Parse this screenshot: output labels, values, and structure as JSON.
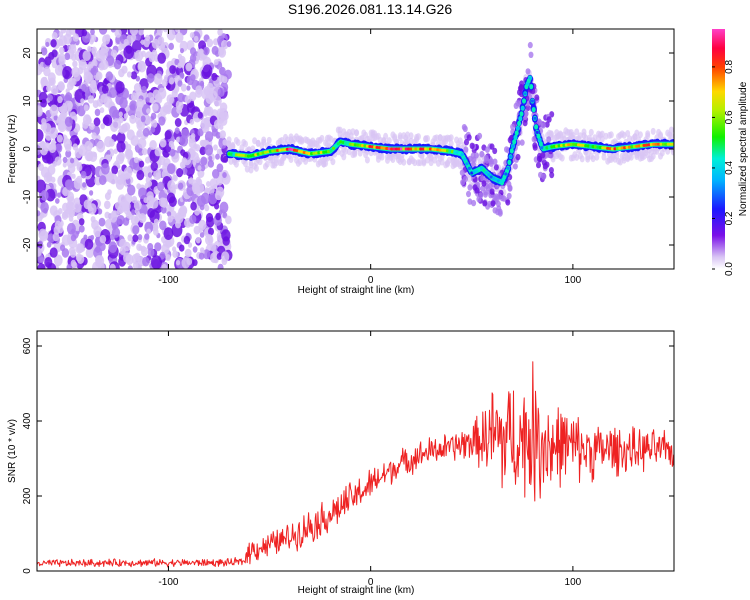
{
  "title": "S196.2026.081.13.14.G26",
  "colors": {
    "snr_line": "#ee2222",
    "frame": "#000000",
    "background": "#ffffff",
    "noise_light": "#d8c4f4",
    "noise_mid": "#a878ee",
    "noise_dark": "#6a10e0"
  },
  "colorbar": {
    "label": "Normalized spectral amplitude",
    "ticks": [
      "0.0",
      "0.2",
      "0.4",
      "0.6",
      "0.8"
    ],
    "tick_values": [
      0.0,
      0.2,
      0.4,
      0.6,
      0.8
    ],
    "range": [
      0,
      0.95
    ],
    "colormap": "rainbow: purple-blue-cyan-green-yellow-red-magenta"
  },
  "chart_data": [
    {
      "type": "heatmap",
      "name": "spectrogram",
      "title": "S196.2026.081.13.14.G26",
      "xlabel": "Height of straight line (km)",
      "ylabel": "Frequency (Hz)",
      "xlim": [
        -165,
        150
      ],
      "ylim": [
        -25,
        25
      ],
      "x_ticks": [
        -100,
        0,
        100
      ],
      "x_tick_labels": [
        "-100",
        "0",
        "100"
      ],
      "y_ticks": [
        -20,
        -10,
        0,
        10,
        20
      ],
      "y_tick_labels": [
        "-20",
        "-10",
        "0",
        "10",
        "20"
      ],
      "noise_region_x": [
        -165,
        -70
      ],
      "ridge": {
        "x": [
          -70,
          -60,
          -50,
          -40,
          -30,
          -20,
          -15,
          -10,
          0,
          10,
          20,
          30,
          40,
          45,
          50,
          55,
          60,
          65,
          68,
          70,
          72,
          75,
          77,
          79,
          80,
          82,
          85,
          90,
          100,
          110,
          120,
          130,
          140,
          150
        ],
        "y": [
          -1,
          -1.5,
          -0.5,
          0,
          -1,
          -0.5,
          1.5,
          1,
          0.5,
          0,
          0,
          0,
          -0.5,
          -1,
          -5,
          -4,
          -6,
          -7,
          -4,
          0,
          3,
          8,
          13,
          15,
          10,
          4,
          0,
          0.5,
          1,
          0.5,
          0,
          0.5,
          1,
          1
        ],
        "amplitude": [
          0.5,
          0.7,
          0.6,
          0.9,
          0.7,
          0.6,
          0.5,
          0.6,
          0.8,
          0.9,
          0.85,
          0.8,
          0.6,
          0.4,
          0.3,
          0.45,
          0.35,
          0.4,
          0.3,
          0.35,
          0.4,
          0.45,
          0.35,
          0.4,
          0.3,
          0.3,
          0.4,
          0.6,
          0.7,
          0.6,
          0.8,
          0.7,
          0.8,
          0.6
        ]
      }
    },
    {
      "type": "line",
      "name": "snr",
      "xlabel": "Height of straight line (km)",
      "ylabel": "SNR (10 * v/v)",
      "xlim": [
        -165,
        150
      ],
      "ylim": [
        0,
        640
      ],
      "x_ticks": [
        -100,
        0,
        100
      ],
      "x_tick_labels": [
        "-100",
        "0",
        "100"
      ],
      "y_ticks": [
        0,
        200,
        400,
        600
      ],
      "y_tick_labels": [
        "0",
        "200",
        "400",
        "600"
      ],
      "envelope": {
        "x": [
          -165,
          -120,
          -70,
          -63,
          -60,
          -50,
          -40,
          -30,
          -20,
          -10,
          0,
          10,
          20,
          30,
          40,
          50,
          55,
          60,
          65,
          70,
          75,
          80,
          85,
          90,
          95,
          100,
          110,
          120,
          130,
          140,
          150
        ],
        "mean": [
          20,
          22,
          22,
          25,
          55,
          70,
          90,
          120,
          150,
          190,
          230,
          270,
          300,
          320,
          330,
          345,
          350,
          360,
          350,
          360,
          350,
          365,
          350,
          330,
          340,
          330,
          320,
          325,
          320,
          325,
          320
        ],
        "spread": [
          12,
          12,
          12,
          15,
          40,
          40,
          45,
          55,
          55,
          55,
          50,
          45,
          45,
          45,
          45,
          60,
          90,
          160,
          200,
          170,
          180,
          220,
          200,
          150,
          120,
          110,
          90,
          80,
          70,
          60,
          55
        ]
      }
    }
  ]
}
